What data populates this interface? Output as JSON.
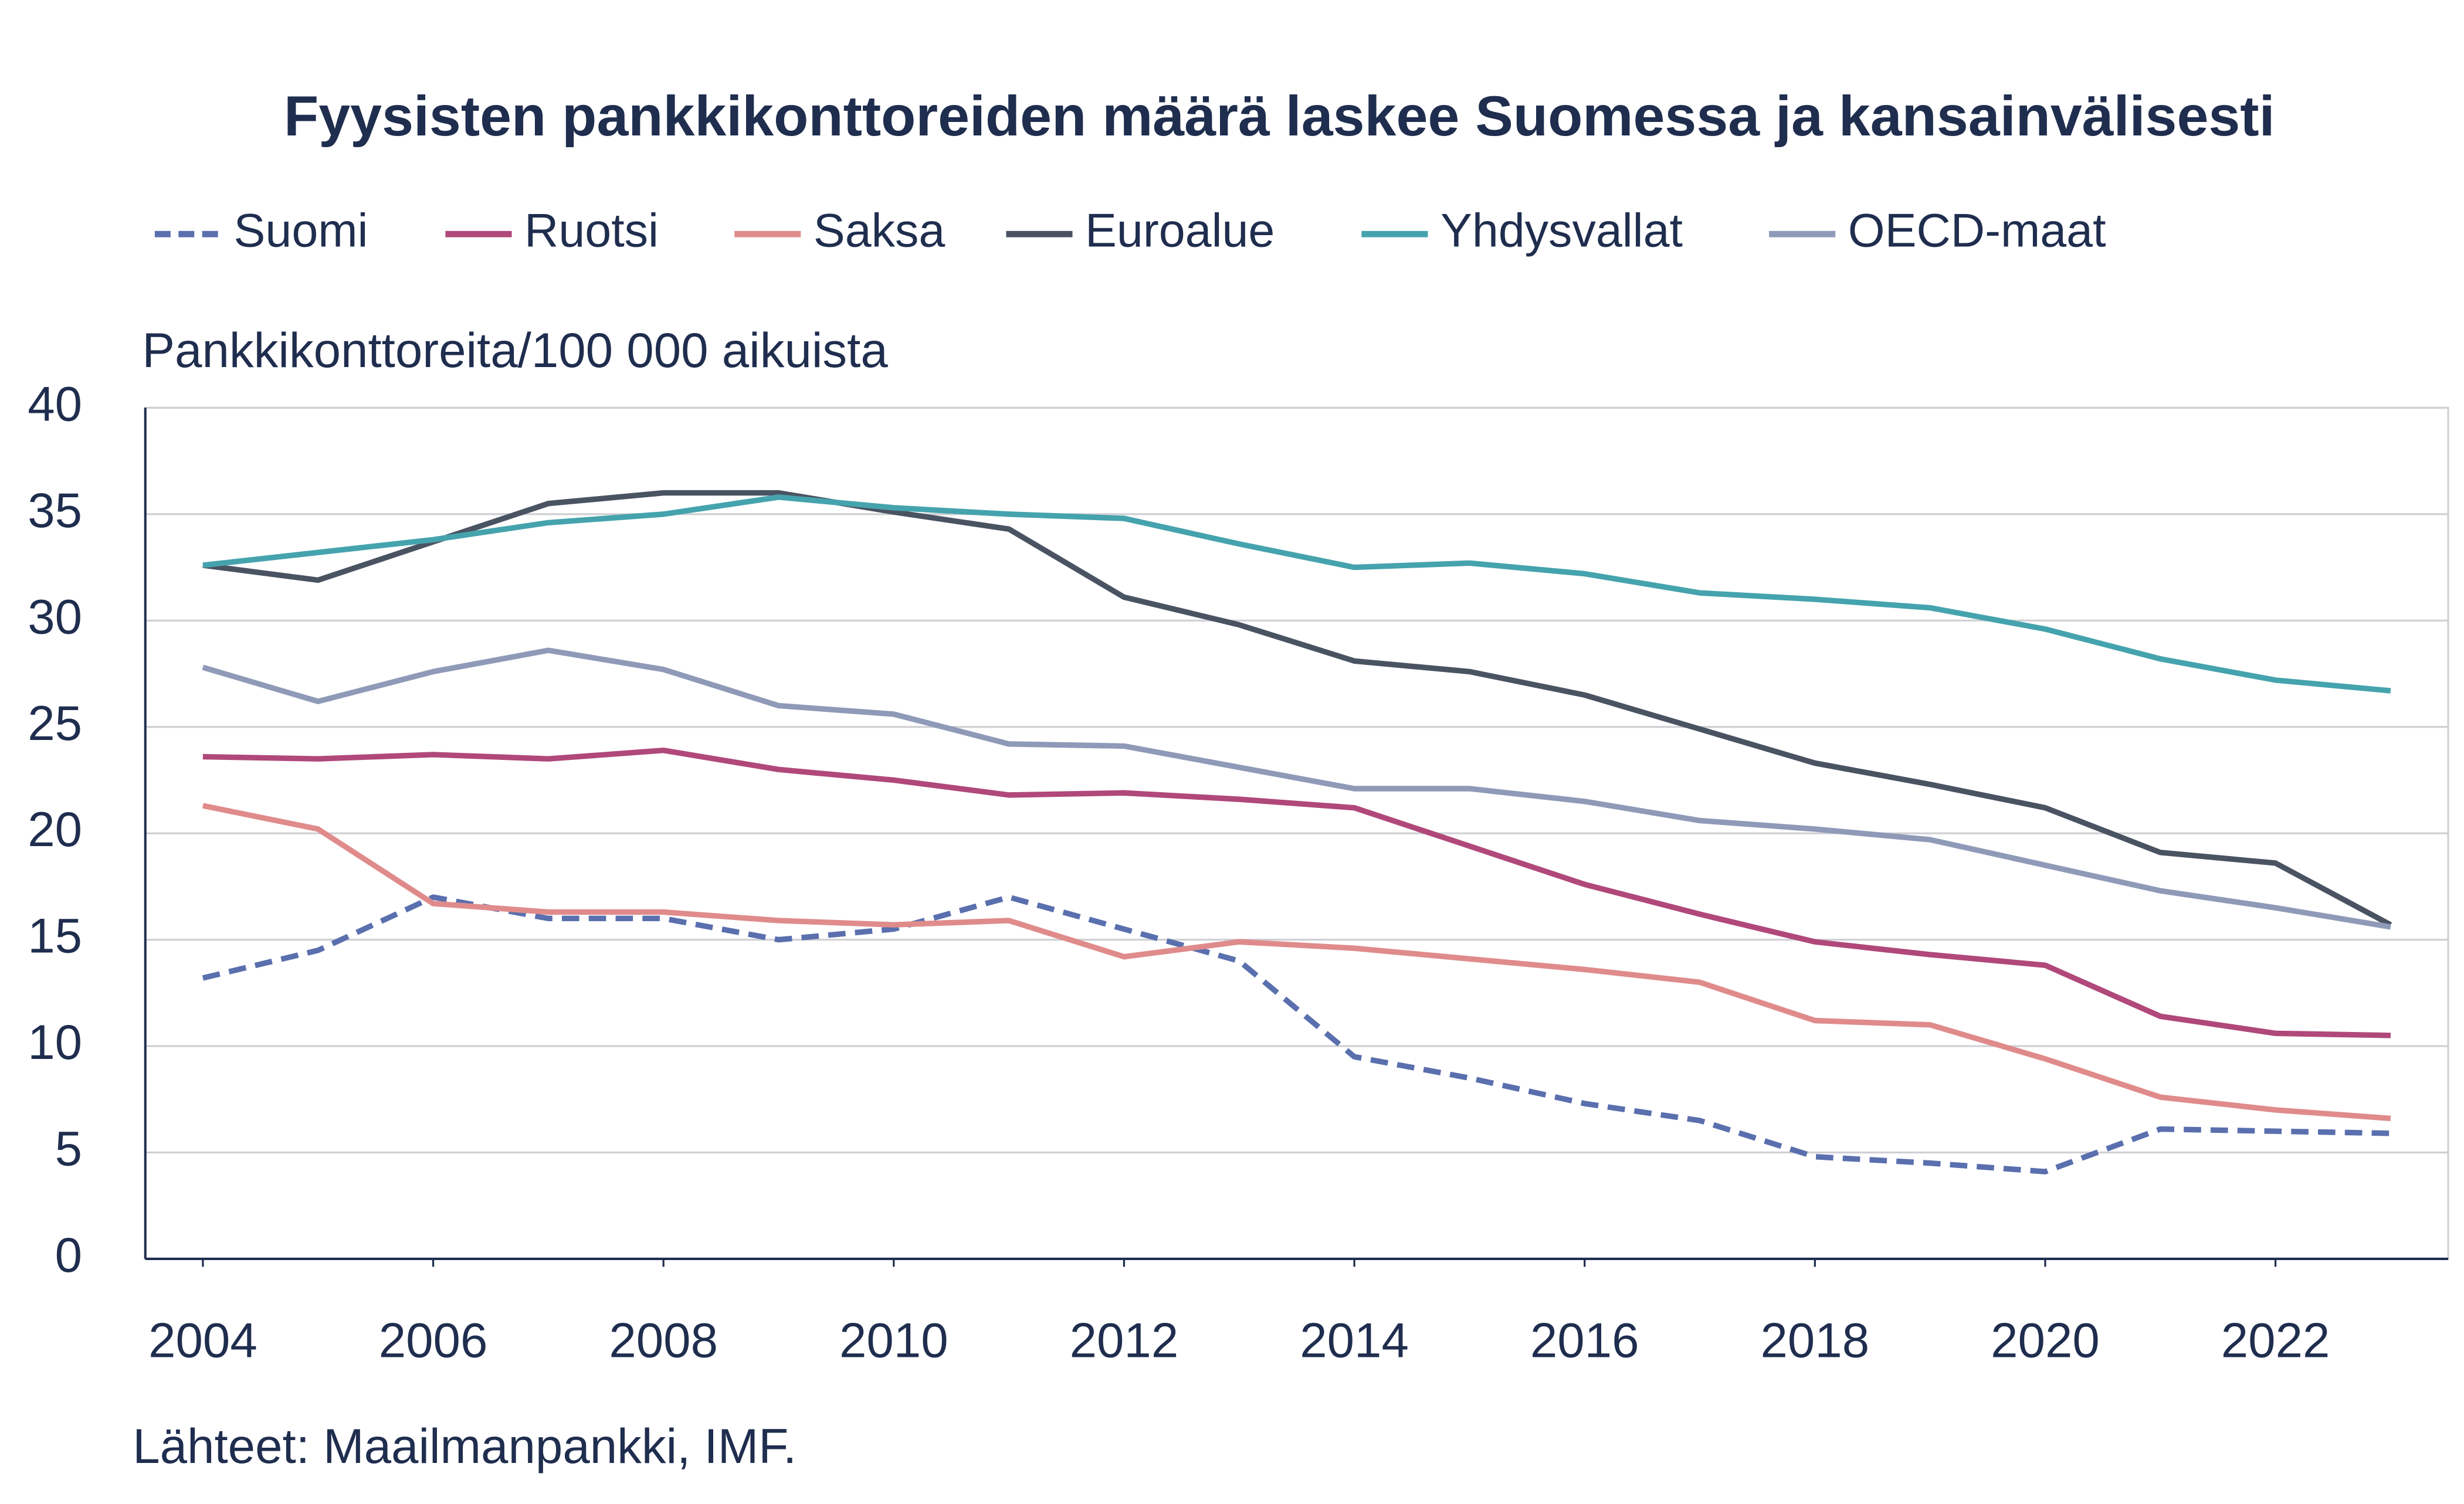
{
  "chart_data": {
    "type": "line",
    "title": "Fyysisten pankkikonttoreiden määrä laskee Suomessa ja kansainvälisesti",
    "y_label": "Pankkikonttoreita/100 000 aikuista",
    "source": "Lähteet: Maailmanpankki, IMF.",
    "x": [
      2004,
      2005,
      2006,
      2007,
      2008,
      2009,
      2010,
      2011,
      2012,
      2013,
      2014,
      2015,
      2016,
      2017,
      2018,
      2019,
      2020,
      2021,
      2022,
      2023
    ],
    "xlim": [
      2003.5,
      2023.5
    ],
    "xticks": [
      2004,
      2006,
      2008,
      2010,
      2012,
      2014,
      2016,
      2018,
      2020,
      2022
    ],
    "ylim": [
      0,
      40
    ],
    "yticks": [
      0,
      5,
      10,
      15,
      20,
      25,
      30,
      35,
      40
    ],
    "grid": true,
    "legend": "top",
    "series": [
      {
        "name": "Suomi",
        "color": "#5a6fae",
        "linestyle": "dashed",
        "values": [
          13.2,
          14.5,
          17,
          16,
          16,
          15,
          15.5,
          17,
          15.5,
          14,
          9.5,
          8.5,
          7.3,
          6.5,
          4.8,
          4.5,
          4.1,
          6.1,
          6,
          5.9
        ]
      },
      {
        "name": "Ruotsi",
        "color": "#b0487a",
        "linestyle": "solid",
        "values": [
          23.6,
          23.5,
          23.7,
          23.5,
          23.9,
          23,
          22.5,
          21.8,
          21.9,
          21.6,
          21.2,
          19.4,
          17.6,
          16.2,
          14.9,
          14.3,
          13.8,
          11.4,
          10.6,
          10.5
        ]
      },
      {
        "name": "Saksa",
        "color": "#e08b8b",
        "linestyle": "solid",
        "values": [
          21.3,
          20.2,
          16.7,
          16.3,
          16.3,
          15.9,
          15.7,
          15.9,
          14.2,
          14.9,
          14.6,
          14.1,
          13.6,
          13,
          11.2,
          11,
          9.4,
          7.6,
          7,
          6.6
        ]
      },
      {
        "name": "Euroalue",
        "color": "#4a5362",
        "linestyle": "solid",
        "values": [
          32.6,
          31.9,
          33.7,
          35.5,
          36,
          36,
          35.1,
          34.3,
          31.1,
          29.8,
          28.1,
          27.6,
          26.5,
          24.9,
          23.3,
          22.3,
          21.2,
          19.1,
          18.6,
          15.7
        ]
      },
      {
        "name": "Yhdysvallat",
        "color": "#45a3ad",
        "linestyle": "solid",
        "values": [
          32.6,
          33.2,
          33.8,
          34.6,
          35,
          35.8,
          35.3,
          35,
          34.8,
          33.6,
          32.5,
          32.7,
          32.2,
          31.3,
          31,
          30.6,
          29.6,
          28.2,
          27.2,
          26.7
        ]
      },
      {
        "name": "OECD-maat",
        "color": "#8f9ab8",
        "linestyle": "solid",
        "values": [
          27.8,
          26.2,
          27.6,
          28.6,
          27.7,
          26,
          25.6,
          24.2,
          24.1,
          23.1,
          22.1,
          22.1,
          21.5,
          20.6,
          20.2,
          19.7,
          18.5,
          17.3,
          16.5,
          15.6
        ]
      }
    ]
  }
}
